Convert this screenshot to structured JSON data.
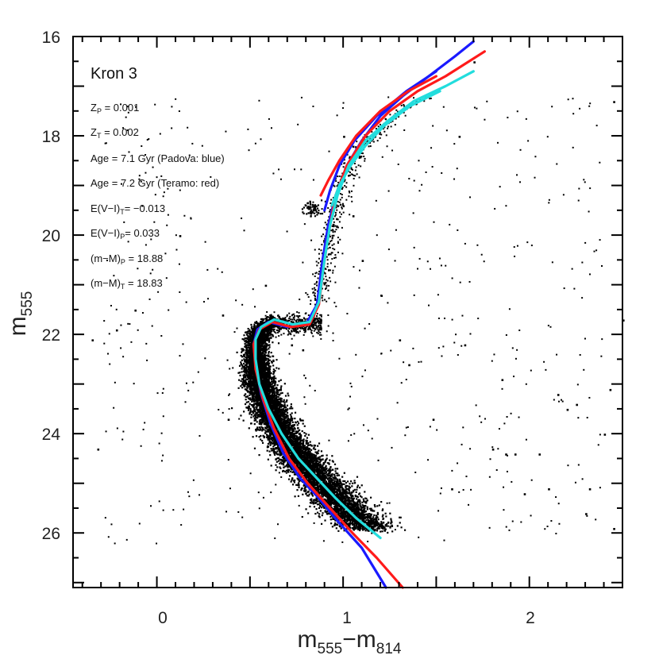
{
  "chart_data": {
    "type": "scatter",
    "title": "Kron 3",
    "xlabel": "m555−m814",
    "ylabel": "m555",
    "xlabel_parts": {
      "main1": "m",
      "sub1": "555",
      "dash": "−",
      "main2": "m",
      "sub2": "814"
    },
    "ylabel_parts": {
      "main": "m",
      "sub": "555"
    },
    "xlim": [
      -0.45,
      2.5
    ],
    "ylim": [
      27.1,
      16.0
    ],
    "y_inverted": true,
    "x_ticks_labeled": [
      "0",
      "1",
      "2"
    ],
    "y_ticks_labeled": [
      "16",
      "18",
      "20",
      "22",
      "24",
      "26"
    ],
    "grid": false,
    "annotations": [
      "Z_P = 0.001",
      "Z_T = 0.002",
      "Age = 7.1 Gyr (Padova: blue)",
      "Age = 7.2 Gyr (Teramo: red)",
      "E(V−I)_T = −0.013",
      "E(V−I)_P = 0.033",
      "(m−M)_P = 18.88",
      "(m−M)_T = 18.83"
    ],
    "colors": {
      "points": "#000000",
      "padova": "#1a1aff",
      "teramo": "#ff1a1a",
      "extra": "#22dddd"
    },
    "series": [
      {
        "color": "blue",
        "x": [
          1.23,
          1.1,
          0.98,
          0.87,
          0.77,
          0.68,
          0.61,
          0.56,
          0.53,
          0.52,
          0.54,
          0.6,
          0.7,
          0.8,
          0.86,
          0.89,
          0.92,
          0.96,
          1.02,
          1.1,
          1.2,
          1.32,
          1.46,
          1.6,
          1.7
        ],
        "y": [
          27.1,
          26.3,
          25.8,
          25.3,
          24.9,
          24.4,
          23.8,
          23.2,
          22.6,
          22.2,
          21.9,
          21.75,
          21.85,
          21.8,
          21.4,
          20.5,
          19.8,
          19.2,
          18.6,
          18.1,
          17.6,
          17.2,
          16.8,
          16.4,
          16.1
        ]
      },
      {
        "color": "red",
        "x": [
          1.32,
          1.18,
          1.05,
          0.93,
          0.81,
          0.71,
          0.63,
          0.57,
          0.53,
          0.52,
          0.55,
          0.62,
          0.72,
          0.82,
          0.87,
          0.9,
          0.93,
          0.96,
          1.02,
          1.12,
          1.25,
          1.4,
          1.55,
          1.76
        ],
        "y": [
          27.1,
          26.5,
          26.0,
          25.5,
          25.0,
          24.5,
          23.9,
          23.3,
          22.7,
          22.2,
          21.9,
          21.75,
          21.85,
          21.8,
          21.4,
          20.5,
          19.8,
          19.2,
          18.6,
          18.0,
          17.5,
          17.1,
          16.8,
          16.3
        ]
      },
      {
        "color": "cyan",
        "x": [
          1.2,
          1.07,
          0.96,
          0.86,
          0.76,
          0.67,
          0.6,
          0.55,
          0.53,
          0.53,
          0.56,
          0.63,
          0.73,
          0.82,
          0.87,
          0.9,
          0.93,
          0.97,
          1.03,
          1.12,
          1.24,
          1.38,
          1.55,
          1.7
        ],
        "y": [
          26.1,
          25.7,
          25.3,
          24.9,
          24.5,
          24.0,
          23.5,
          23.0,
          22.5,
          22.1,
          21.85,
          21.7,
          21.8,
          21.75,
          21.35,
          20.5,
          19.8,
          19.2,
          18.6,
          18.1,
          17.7,
          17.3,
          17.0,
          16.7
        ]
      },
      {
        "color": "blue",
        "x": [
          0.9,
          0.93,
          0.98,
          1.06,
          1.18,
          1.34,
          1.5
        ],
        "y": [
          19.5,
          19.1,
          18.6,
          18.1,
          17.6,
          17.1,
          16.7
        ]
      },
      {
        "color": "red",
        "x": [
          0.88,
          0.92,
          0.98,
          1.07,
          1.2,
          1.35,
          1.5
        ],
        "y": [
          19.2,
          18.9,
          18.5,
          18.0,
          17.5,
          17.1,
          16.8
        ]
      },
      {
        "color": "cyan",
        "x": [
          0.94,
          0.98,
          1.04,
          1.12,
          1.22,
          1.36,
          1.52
        ],
        "y": [
          19.4,
          19.0,
          18.6,
          18.2,
          17.8,
          17.4,
          17.1
        ]
      }
    ],
    "scatter_field_stars": {
      "x": [
        -0.35,
        -0.32,
        -0.22,
        -0.12,
        0.12,
        0.35,
        0.38,
        0.58,
        0.66,
        0.72,
        0.78,
        1.1,
        1.2,
        1.3,
        1.35,
        1.48,
        1.58,
        1.65,
        1.8,
        1.85,
        1.87,
        1.92,
        1.97,
        2.05,
        2.1,
        2.15,
        2.2,
        2.25,
        2.3,
        2.32,
        2.4,
        2.43,
        2.45,
        2.45,
        2.5,
        1.05,
        1.0,
        1.05,
        1.62,
        1.7
      ],
      "y": [
        22.1,
        24.3,
        21.9,
        21.5,
        20.0,
        21.6,
        23.7,
        21.0,
        23.1,
        22.2,
        22.3,
        20.5,
        21.2,
        22.1,
        22.6,
        23.7,
        25.1,
        22.2,
        24.3,
        22.9,
        24.4,
        24.4,
        25.2,
        24.4,
        25.1,
        23.2,
        23.5,
        23.4,
        25.6,
        25.1,
        24.0,
        23.1,
        25.9,
        17.3,
        21.7,
        19.6,
        18.0,
        18.2,
        18.0,
        16.5
      ]
    }
  },
  "annotation_text": {
    "title": "Kron 3",
    "l1_lhs": "Z",
    "l1_sub": "P",
    "l1_rhs": " = 0.001",
    "l2_lhs": "Z",
    "l2_sub": "T",
    "l2_rhs": " = 0.002",
    "l3": "Age = 7.1 Gyr (Padova: blue)",
    "l4": "Age = 7.2 Gyr (Teramo: red)",
    "l5_lhs": "E(V−I)",
    "l5_sub": "T",
    "l5_rhs": "= −0.013",
    "l6_lhs": "E(V−I)",
    "l6_sub": "P",
    "l6_rhs": "= 0.033",
    "l7_lhs": "(m−M)",
    "l7_sub": "P",
    "l7_rhs": " = 18.88",
    "l8_lhs": "(m−M)",
    "l8_sub": "T",
    "l8_rhs": " = 18.83"
  }
}
